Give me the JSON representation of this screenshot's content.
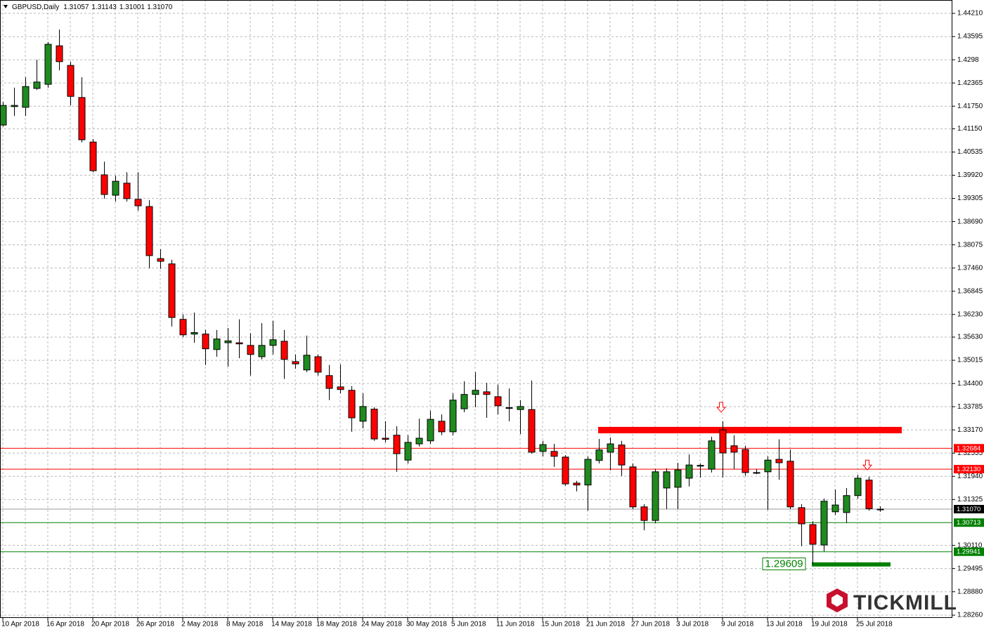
{
  "chart_data": {
    "type": "candlestick",
    "title": "GBPUSD,Daily",
    "categories": [
      "10 Apr 2018",
      null,
      null,
      null,
      "16 Apr 2018",
      null,
      null,
      null,
      "20 Apr 2018",
      null,
      null,
      null,
      "26 Apr 2018",
      null,
      null,
      null,
      "2 May 2018",
      null,
      null,
      null,
      "8 May 2018",
      null,
      null,
      null,
      "14 May 2018",
      null,
      null,
      null,
      "18 May 2018",
      null,
      null,
      null,
      "24 May 2018",
      null,
      null,
      null,
      "30 May 2018",
      null,
      null,
      null,
      "5 Jun 2018",
      null,
      null,
      null,
      "11 Jun 2018",
      null,
      null,
      null,
      "15 Jun 2018",
      null,
      null,
      null,
      "21 Jun 2018",
      null,
      null,
      null,
      "27 Jun 2018",
      null,
      null,
      null,
      "3 Jul 2018",
      null,
      null,
      null,
      "9 Jul 2018",
      null,
      null,
      null,
      "13 Jul 2018",
      null,
      null,
      null,
      "19 Jul 2018",
      null,
      null,
      null,
      "25 Jul 2018",
      null,
      null
    ],
    "open": [
      1.4125,
      1.4174,
      1.4172,
      1.4222,
      1.4233,
      1.4335,
      1.4283,
      1.4198,
      1.408,
      1.3993,
      1.3939,
      1.3971,
      1.3928,
      1.3909,
      1.3771,
      1.3757,
      1.361,
      1.3571,
      1.3571,
      1.353,
      1.3548,
      1.3548,
      1.3541,
      1.3511,
      1.3541,
      1.3552,
      1.3498,
      1.3476,
      1.3511,
      1.3461,
      1.3431,
      1.3422,
      1.334,
      1.3372,
      1.3295,
      1.3303,
      1.3237,
      1.328,
      1.3288,
      1.334,
      1.3312,
      1.3373,
      1.3411,
      1.3418,
      1.3405,
      1.3376,
      1.3371,
      1.3371,
      1.326,
      1.326,
      1.3245,
      1.3176,
      1.3171,
      1.3236,
      1.3258,
      1.3277,
      1.3219,
      1.3113,
      1.3077,
      1.3163,
      1.3165,
      1.3189,
      1.3221,
      1.3213,
      1.3317,
      1.3275,
      1.3265,
      1.3204,
      1.3206,
      1.3239,
      1.3234,
      1.3111,
      1.3066,
      1.3012,
      1.31,
      1.3098,
      1.3143,
      1.3184,
      1.31057
    ],
    "high": [
      1.4186,
      1.4224,
      1.4252,
      1.4298,
      1.4345,
      1.4378,
      1.4293,
      1.4252,
      1.4088,
      1.4028,
      1.3991,
      1.4,
      1.4,
      1.3926,
      1.3796,
      1.3768,
      1.3623,
      1.3628,
      1.3582,
      1.3582,
      1.3587,
      1.361,
      1.3573,
      1.36,
      1.3606,
      1.3582,
      1.3517,
      1.3567,
      1.3517,
      1.3489,
      1.3491,
      1.3433,
      1.3414,
      1.3377,
      1.334,
      1.3327,
      1.3303,
      1.3347,
      1.3368,
      1.3358,
      1.3414,
      1.3446,
      1.347,
      1.3442,
      1.3437,
      1.3427,
      1.3396,
      1.3448,
      1.3288,
      1.328,
      1.325,
      1.3182,
      1.3247,
      1.3293,
      1.3297,
      1.3288,
      1.3228,
      1.312,
      1.3213,
      1.3215,
      1.323,
      1.3252,
      1.3228,
      1.3299,
      1.334,
      1.3303,
      1.3275,
      1.3213,
      1.3247,
      1.3292,
      1.3265,
      1.312,
      1.3075,
      1.3135,
      1.3159,
      1.3163,
      1.3198,
      1.3193,
      1.31143
    ],
    "low": [
      1.4121,
      1.4149,
      1.4149,
      1.4218,
      1.4224,
      1.427,
      1.4177,
      1.4079,
      1.4,
      1.393,
      1.3922,
      1.3922,
      1.3898,
      1.3745,
      1.3744,
      1.3591,
      1.3563,
      1.3548,
      1.3489,
      1.3511,
      1.3485,
      1.3507,
      1.3461,
      1.3504,
      1.3517,
      1.3452,
      1.3479,
      1.347,
      1.3461,
      1.3396,
      1.3414,
      1.3312,
      1.3321,
      1.3288,
      1.3284,
      1.3206,
      1.3228,
      1.3273,
      1.328,
      1.3303,
      1.3303,
      1.3364,
      1.3377,
      1.3349,
      1.3358,
      1.334,
      1.3306,
      1.3254,
      1.3247,
      1.3219,
      1.3169,
      1.3154,
      1.3103,
      1.3228,
      1.321,
      1.3195,
      1.3107,
      1.3051,
      1.307,
      1.3107,
      1.3107,
      1.3167,
      1.3191,
      1.3204,
      1.3191,
      1.3213,
      1.3195,
      1.32,
      1.3105,
      1.3185,
      1.3107,
      1.3009,
      1.29609,
      1.2995,
      1.3092,
      1.307,
      1.3135,
      1.3103,
      1.31001
    ],
    "close": [
      1.4177,
      1.4177,
      1.4227,
      1.4239,
      1.4339,
      1.4293,
      1.4201,
      1.4086,
      1.4004,
      1.3941,
      1.3976,
      1.393,
      1.3911,
      1.3779,
      1.3764,
      1.3615,
      1.3569,
      1.3575,
      1.3532,
      1.3558,
      1.3553,
      1.3545,
      1.3517,
      1.3541,
      1.3556,
      1.3504,
      1.3492,
      1.3515,
      1.347,
      1.3427,
      1.3424,
      1.3349,
      1.3379,
      1.3293,
      1.3292,
      1.3254,
      1.3284,
      1.3295,
      1.3345,
      1.3312,
      1.3396,
      1.3411,
      1.3422,
      1.3411,
      1.3381,
      1.3374,
      1.3379,
      1.3258,
      1.3278,
      1.3247,
      1.3174,
      1.3171,
      1.3239,
      1.3264,
      1.328,
      1.3224,
      1.3113,
      1.3077,
      1.3206,
      1.3206,
      1.3211,
      1.3224,
      1.3223,
      1.3288,
      1.3256,
      1.3258,
      1.3204,
      1.3203,
      1.3237,
      1.323,
      1.3113,
      1.3068,
      1.3014,
      1.3128,
      1.3118,
      1.3143,
      1.3189,
      1.3108,
      1.3107
    ],
    "up_color": "#1f8a1f",
    "down_color": "#ff0000",
    "ylim": [
      1.28186,
      1.44471
    ],
    "yticks": [
      {
        "value": 1.4421,
        "label": "1.44210"
      },
      1.43595,
      1.4298,
      1.42365,
      {
        "value": 1.4175,
        "label": "1.41750"
      },
      {
        "value": 1.4115,
        "label": "1.41150"
      },
      1.40535,
      {
        "value": 1.3992,
        "label": "1.39920"
      },
      1.39305,
      {
        "value": 1.3869,
        "label": "1.38690"
      },
      1.38075,
      {
        "value": 1.3746,
        "label": "1.37460"
      },
      1.36845,
      {
        "value": 1.3623,
        "label": "1.36230"
      },
      {
        "value": 1.3563,
        "label": "1.35630"
      },
      1.35015,
      {
        "value": 1.344,
        "label": "1.34400"
      },
      1.33785,
      {
        "value": 1.3317,
        "label": "1.33170"
      },
      1.32555,
      {
        "value": 1.3194,
        "label": "1.31940"
      },
      1.31325,
      {
        "value": 1.3011,
        "label": "1.30110"
      },
      1.29495,
      {
        "value": 1.2888,
        "label": "1.28880"
      },
      {
        "value": 1.2826,
        "label": "1.28260"
      }
    ],
    "grid": true,
    "levels": [
      {
        "value": 1.32684,
        "color": "#ff0000"
      },
      {
        "value": 1.3213,
        "label": "1.32130",
        "color": "#ff0000"
      },
      {
        "value": 1.30713,
        "color": "#008000"
      },
      {
        "value": 1.29941,
        "color": "#008000"
      }
    ],
    "last_price": {
      "value": 1.3107,
      "label": "1.31070",
      "color": "#000000"
    },
    "zones": [
      {
        "x": [
          53,
          80
        ],
        "y": [
          1.3308,
          1.3325
        ],
        "color": "#ff0000"
      },
      {
        "x": [
          72,
          79
        ],
        "y": [
          1.2955,
          1.2966
        ],
        "color": "#008000"
      }
    ],
    "arrows": [
      {
        "x": 64,
        "y": 1.3375
      },
      {
        "x": 77,
        "y": 1.3222
      }
    ],
    "arrow_color": "#ff0000",
    "watermark": "TICKMILL"
  }
}
